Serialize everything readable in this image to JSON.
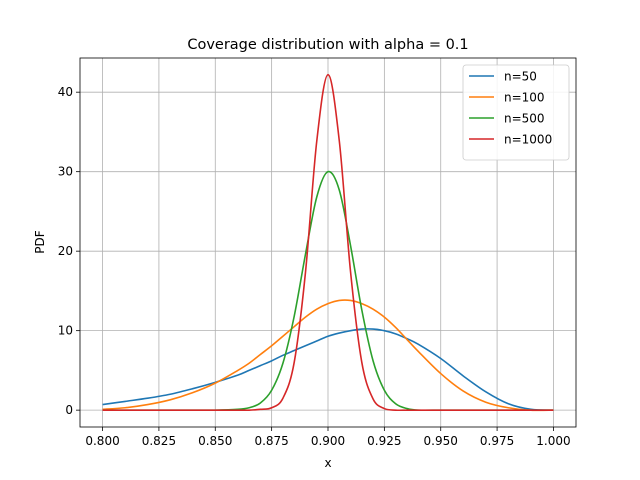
{
  "chart_data": {
    "type": "line",
    "title": "Coverage distribution with alpha = 0.1",
    "xlabel": "x",
    "ylabel": "PDF",
    "xlim": [
      0.79,
      1.01
    ],
    "ylim": [
      -2.12,
      44.3
    ],
    "grid": true,
    "legend_position": "top-right",
    "x_ticks": [
      0.8,
      0.825,
      0.85,
      0.875,
      0.9,
      0.925,
      0.95,
      0.975,
      1.0
    ],
    "x_tick_labels": [
      "0.800",
      "0.825",
      "0.850",
      "0.875",
      "0.900",
      "0.925",
      "0.950",
      "0.975",
      "1.000"
    ],
    "y_ticks": [
      0,
      10,
      20,
      30,
      40
    ],
    "y_tick_labels": [
      "0",
      "10",
      "20",
      "30",
      "40"
    ],
    "x": [
      0.8,
      0.81,
      0.82,
      0.83,
      0.84,
      0.85,
      0.86,
      0.865,
      0.87,
      0.875,
      0.88,
      0.885,
      0.89,
      0.895,
      0.9,
      0.905,
      0.91,
      0.915,
      0.92,
      0.925,
      0.93,
      0.935,
      0.94,
      0.95,
      0.96,
      0.97,
      0.98,
      0.99,
      1.0
    ],
    "series": [
      {
        "name": "n=50",
        "color": "#1f77b4",
        "values": [
          0.7,
          1.1,
          1.5,
          2.0,
          2.7,
          3.5,
          4.4,
          5.0,
          5.6,
          6.2,
          6.9,
          7.5,
          8.1,
          8.7,
          9.3,
          9.7,
          10.0,
          10.2,
          10.2,
          10.0,
          9.6,
          9.0,
          8.3,
          6.5,
          4.3,
          2.3,
          0.8,
          0.1,
          0.0
        ]
      },
      {
        "name": "n=100",
        "color": "#ff7f0e",
        "values": [
          0.1,
          0.3,
          0.7,
          1.3,
          2.2,
          3.4,
          5.0,
          5.9,
          7.0,
          8.1,
          9.3,
          10.5,
          11.7,
          12.7,
          13.4,
          13.8,
          13.8,
          13.4,
          12.7,
          11.7,
          10.4,
          8.9,
          7.4,
          4.6,
          2.4,
          1.0,
          0.3,
          0.0,
          0.0
        ]
      },
      {
        "name": "n=500",
        "color": "#2ca02c",
        "values": [
          0.0,
          0.0,
          0.0,
          0.0,
          0.0,
          0.0,
          0.1,
          0.3,
          0.9,
          2.5,
          5.9,
          11.8,
          19.6,
          26.8,
          30.0,
          27.7,
          20.7,
          12.6,
          6.2,
          2.5,
          0.8,
          0.2,
          0.0,
          0.0,
          0.0,
          0.0,
          0.0,
          0.0,
          0.0
        ]
      },
      {
        "name": "n=1000",
        "color": "#d62728",
        "values": [
          0.0,
          0.0,
          0.0,
          0.0,
          0.0,
          0.0,
          0.0,
          0.0,
          0.1,
          0.3,
          1.5,
          6.0,
          17.3,
          33.8,
          42.2,
          33.9,
          17.4,
          6.0,
          1.4,
          0.2,
          0.0,
          0.0,
          0.0,
          0.0,
          0.0,
          0.0,
          0.0,
          0.0,
          0.0
        ]
      }
    ]
  }
}
